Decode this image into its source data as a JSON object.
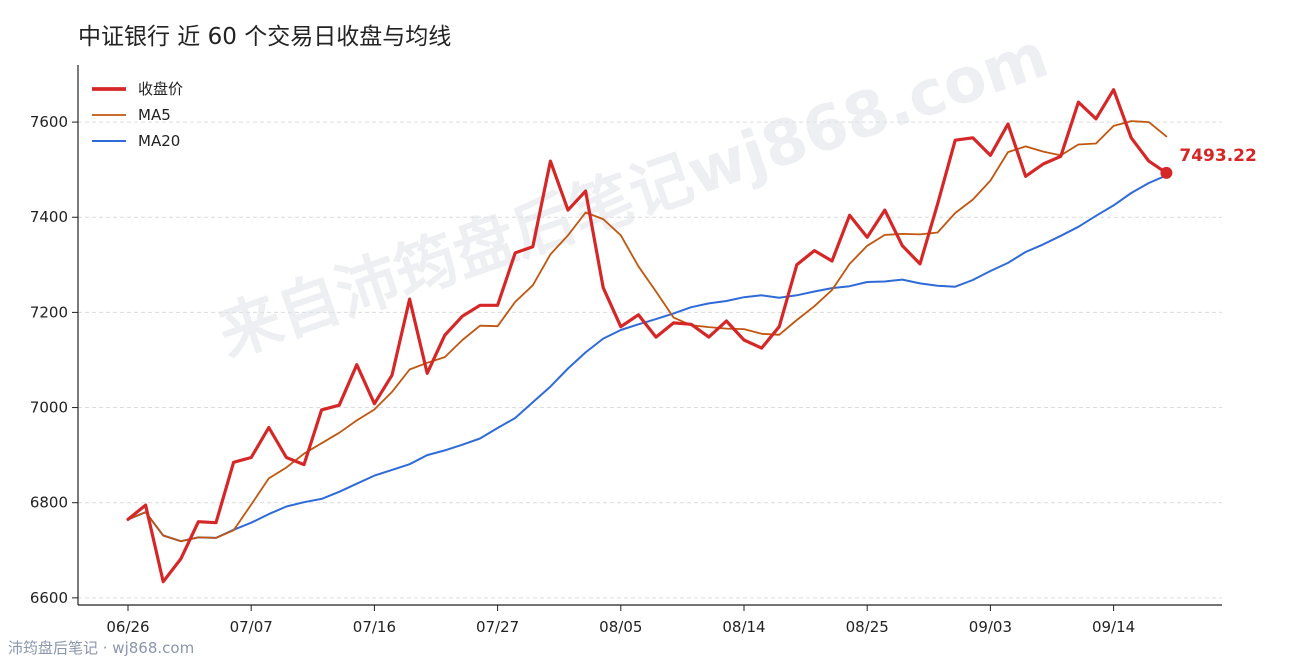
{
  "title": "中证银行 近 60 个交易日收盘与均线",
  "watermark": "来自沛筠盘后笔记wj868.com",
  "footer": "沛筠盘后笔记 · wj868.com",
  "colors": {
    "close": "#d62728",
    "ma5": "#c0560f",
    "ma20": "#2f6bd8"
  },
  "chart_data": {
    "type": "line",
    "ylim": [
      6585,
      7720
    ],
    "yticks": [
      6600,
      6800,
      7000,
      7200,
      7400,
      7600
    ],
    "xtick_labels": [
      "06/26",
      "07/07",
      "07/16",
      "07/27",
      "08/05",
      "08/14",
      "08/25",
      "09/03",
      "09/14"
    ],
    "xtick_index": [
      0,
      7,
      14,
      21,
      28,
      35,
      42,
      49,
      56
    ],
    "grid": "horizontal dashed",
    "legend_position": "top-left",
    "last_label": "7493.22",
    "series": [
      {
        "name": "收盘价",
        "key": "close",
        "values": [
          6765,
          6795,
          6634,
          6682,
          6760,
          6758,
          6885,
          6895,
          6958,
          6895,
          6880,
          6995,
          7005,
          7090,
          7008,
          7068,
          7228,
          7072,
          7152,
          7192,
          7215,
          7215,
          7325,
          7338,
          7518,
          7415,
          7455,
          7252,
          7170,
          7195,
          7148,
          7178,
          7175,
          7148,
          7182,
          7142,
          7125,
          7170,
          7300,
          7330,
          7308,
          7404,
          7358,
          7415,
          7340,
          7302,
          7428,
          7562,
          7567,
          7530,
          7596,
          7486,
          7512,
          7528,
          7642,
          7607,
          7668,
          7567,
          7518,
          7493.22
        ]
      },
      {
        "name": "MA5",
        "key": "ma5",
        "values": [
          6765,
          6780,
          6731,
          6719,
          6727,
          6726,
          6742,
          6796,
          6851,
          6874,
          6903,
          6925,
          6947,
          6973,
          6996,
          7033,
          7080,
          7094,
          7106,
          7142,
          7172,
          7171,
          7222,
          7257,
          7322,
          7362,
          7410,
          7396,
          7362,
          7297,
          7244,
          7189,
          7173,
          7169,
          7166,
          7165,
          7155,
          7153,
          7184,
          7213,
          7247,
          7302,
          7340,
          7363,
          7365,
          7364,
          7368,
          7409,
          7437,
          7477,
          7537,
          7549,
          7538,
          7530,
          7553,
          7555,
          7592,
          7602,
          7600,
          7570
        ]
      },
      {
        "name": "MA20",
        "key": "ma20",
        "values": [
          6765,
          6780,
          6731,
          6719,
          6727,
          6726,
          6743,
          6758,
          6776,
          6792,
          6801,
          6808,
          6823,
          6840,
          6857,
          6869,
          6881,
          6900,
          6910,
          6922,
          6935,
          6957,
          6978,
          7011,
          7044,
          7082,
          7116,
          7145,
          7163,
          7175,
          7186,
          7198,
          7211,
          7219,
          7224,
          7232,
          7236,
          7231,
          7236,
          7244,
          7251,
          7255,
          7264,
          7265,
          7269,
          7261,
          7256,
          7254,
          7268,
          7287,
          7304,
          7327,
          7343,
          7361,
          7380,
          7403,
          7425,
          7451,
          7472,
          7488
        ]
      }
    ]
  }
}
